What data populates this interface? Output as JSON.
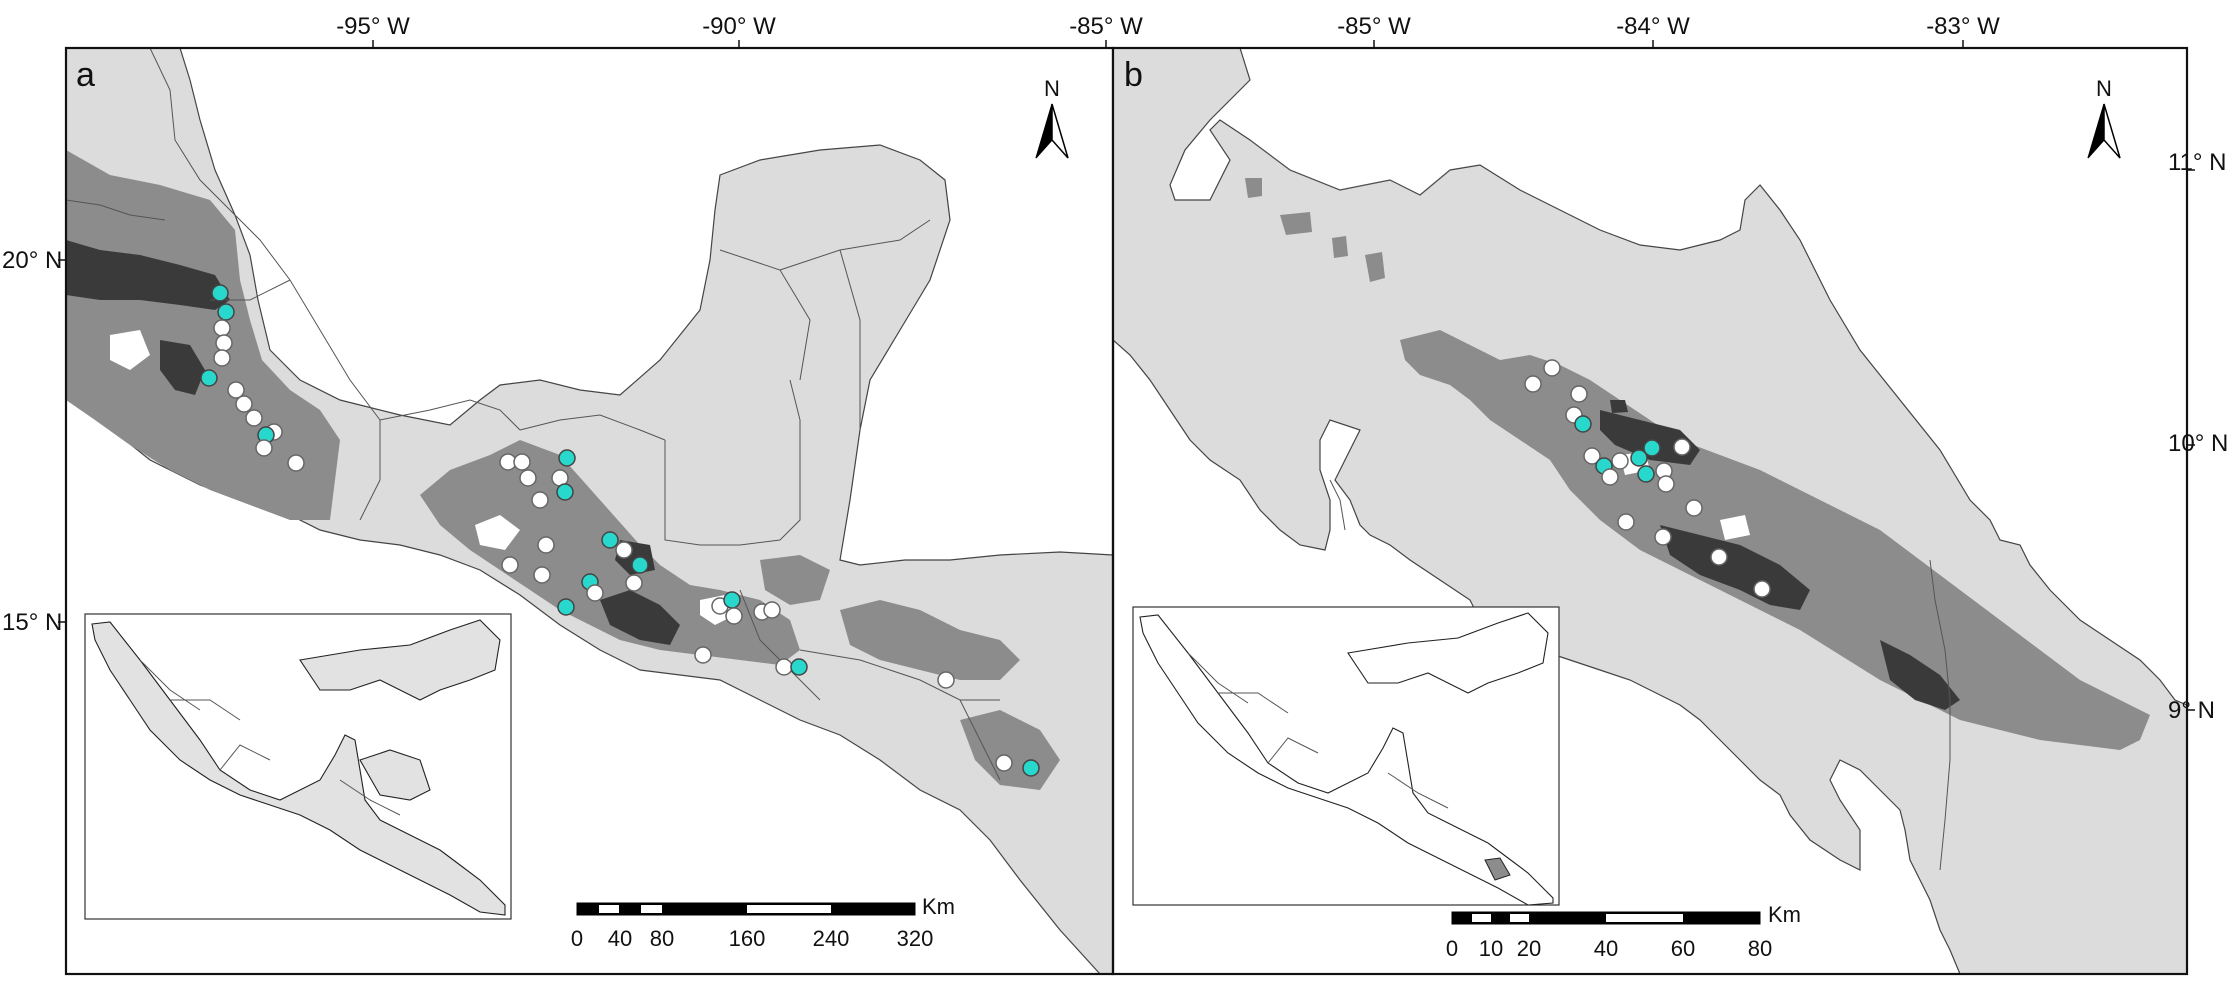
{
  "figure": {
    "panel_a": {
      "letter": "a",
      "top_ticks": [
        "-95° W",
        "-90° W",
        "-85° W"
      ],
      "left_ticks": [
        "20° N",
        "15° N"
      ],
      "north_label": "N",
      "scale_unit": "Km",
      "scale_labels": [
        "0",
        "40",
        "80",
        "160",
        "240",
        "320"
      ]
    },
    "panel_b": {
      "letter": "b",
      "top_ticks": [
        "-85° W",
        "-84° W",
        "-83° W"
      ],
      "right_ticks": [
        "11° N",
        "10° N",
        "9° N"
      ],
      "north_label": "N",
      "scale_unit": "Km",
      "scale_labels": [
        "0",
        "10",
        "20",
        "40",
        "60",
        "80"
      ]
    }
  },
  "legend_colors": {
    "sea": "#ffffff",
    "land": "#dcdcdc",
    "mid_elevation": "#8c8c8c",
    "high_elevation": "#3a3a3a",
    "record_white": "#ffffff",
    "record_cyan": "#29d8cc"
  }
}
